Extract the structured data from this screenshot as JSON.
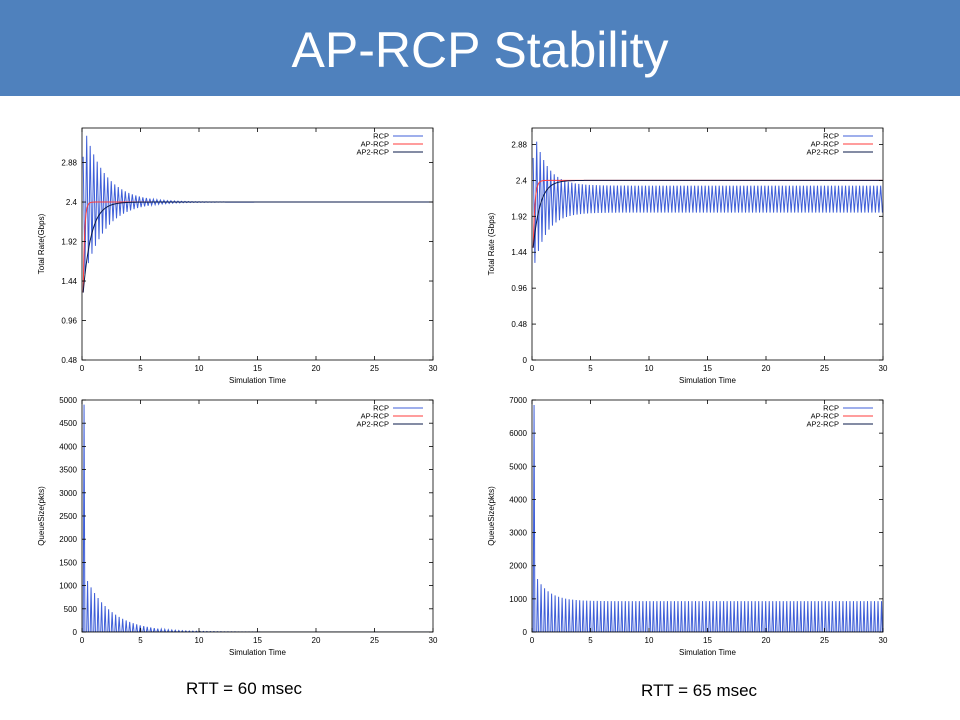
{
  "slide": {
    "title": "AP-RCP Stability",
    "rtt_left": "RTT = 60  msec",
    "rtt_right": "RTT = 65  msec"
  },
  "colors": {
    "header": "#4f81bd",
    "rcp": "#3f5fd8",
    "ap_rcp": "#ff3b3b",
    "ap2_rcp": "#0a1a4a"
  },
  "chart_data": [
    {
      "type": "line",
      "xlabel": "Simulation Time",
      "ylabel": "Total Rate(Gbps)",
      "xlim": [
        0,
        30
      ],
      "ylim": [
        0.48,
        3.3
      ],
      "xticks": [
        0,
        5,
        10,
        15,
        20,
        25,
        30
      ],
      "yticks": [
        0.48,
        0.96,
        1.44,
        1.92,
        2.4,
        2.88
      ],
      "legend": "top-right",
      "grid": false,
      "series": [
        {
          "name": "RCP",
          "kind": "rate_osc",
          "start": 0.1,
          "period": 0.3,
          "steady": 2.4,
          "amp0": 1.9,
          "floor": 0,
          "decay": 0.55
        },
        {
          "name": "AP-RCP",
          "kind": "rate_smooth",
          "start": 0.1,
          "y0": 1.3,
          "steady": 2.4,
          "tau": 0.12
        },
        {
          "name": "AP2-RCP",
          "kind": "rate_smooth",
          "start": 0.1,
          "y0": 1.3,
          "steady": 2.4,
          "tau": 0.7
        }
      ]
    },
    {
      "type": "line",
      "xlabel": "Simulation Time",
      "ylabel": "Total Rate (Gbps)",
      "xlim": [
        0,
        30
      ],
      "ylim": [
        0,
        3.1
      ],
      "xticks": [
        0,
        5,
        10,
        15,
        20,
        25,
        30
      ],
      "yticks": [
        0,
        0.48,
        0.96,
        1.44,
        1.92,
        2.4,
        2.88
      ],
      "legend": "top-right",
      "grid": false,
      "series": [
        {
          "name": "RCP",
          "kind": "rate_osc",
          "start": 0.1,
          "period": 0.3,
          "steady": 2.15,
          "amp0": 1.9,
          "floor": 0.36,
          "decay": 0.9
        },
        {
          "name": "AP-RCP",
          "kind": "rate_smooth",
          "start": 0.1,
          "y0": 1.5,
          "steady": 2.4,
          "tau": 0.15
        },
        {
          "name": "AP2-RCP",
          "kind": "rate_smooth",
          "start": 0.1,
          "y0": 1.5,
          "steady": 2.4,
          "tau": 0.6
        }
      ]
    },
    {
      "type": "line",
      "xlabel": "Simulation Time",
      "ylabel": "QueueSize(pkts)",
      "xlim": [
        0,
        30
      ],
      "ylim": [
        0,
        5000
      ],
      "xticks": [
        0,
        5,
        10,
        15,
        20,
        25,
        30
      ],
      "yticks": [
        0,
        500,
        1000,
        1500,
        2000,
        2500,
        3000,
        3500,
        4000,
        4500,
        5000
      ],
      "legend": "top-right",
      "grid": false,
      "series": [
        {
          "name": "RCP",
          "kind": "queue_spikes",
          "start": 0.1,
          "period": 0.3,
          "first_peak": 4900,
          "second_peak": 1100,
          "steady_peak": 0,
          "decay": 0.45
        },
        {
          "name": "AP-RCP",
          "kind": "flat",
          "value": 0
        },
        {
          "name": "AP2-RCP",
          "kind": "flat",
          "value": 0
        }
      ]
    },
    {
      "type": "line",
      "xlabel": "Simulation Time",
      "ylabel": "QueueSize(pkts)",
      "xlim": [
        0,
        30
      ],
      "ylim": [
        0,
        7000
      ],
      "xticks": [
        0,
        5,
        10,
        15,
        20,
        25,
        30
      ],
      "yticks": [
        0,
        1000,
        2000,
        3000,
        4000,
        5000,
        6000,
        7000
      ],
      "legend": "top-right",
      "grid": false,
      "series": [
        {
          "name": "RCP",
          "kind": "queue_spikes",
          "start": 0.1,
          "period": 0.3,
          "first_peak": 6850,
          "second_peak": 1600,
          "steady_peak": 930,
          "decay": 0.9
        },
        {
          "name": "AP-RCP",
          "kind": "flat",
          "value": 0
        },
        {
          "name": "AP2-RCP",
          "kind": "flat",
          "value": 0
        }
      ]
    }
  ]
}
